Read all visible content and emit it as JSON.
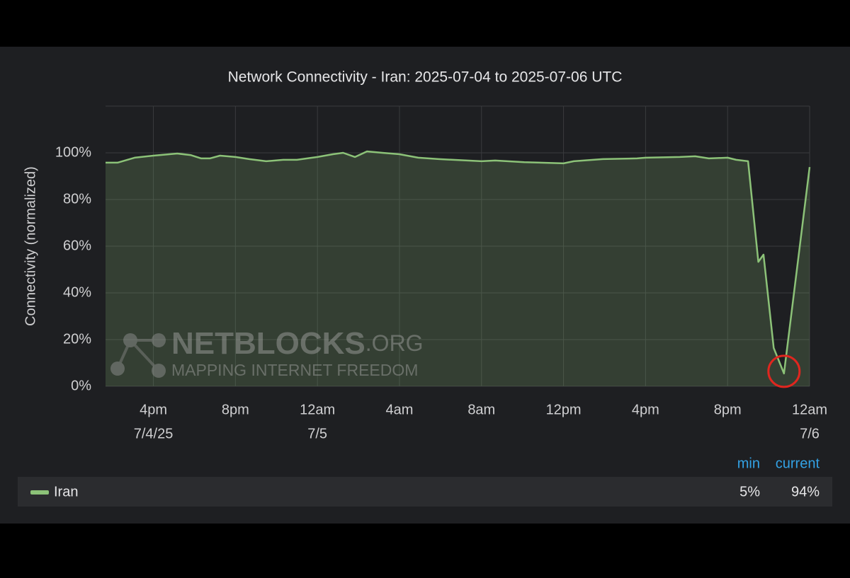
{
  "chart_data": {
    "type": "line",
    "title": "Network Connectivity - Iran: 2025-07-04 to 2025-07-06 UTC",
    "y_label": "Connectivity (normalized)",
    "watermark": {
      "brand": "NETBLOCKS",
      "domain": ".ORG",
      "tagline": "MAPPING INTERNET FREEDOM"
    },
    "x": [
      "2025-07-04 13:40",
      "2025-07-04 14:15",
      "2025-07-04 15:05",
      "2025-07-04 16:00",
      "2025-07-04 17:10",
      "2025-07-04 17:50",
      "2025-07-04 18:20",
      "2025-07-04 18:45",
      "2025-07-04 19:15",
      "2025-07-04 20:00",
      "2025-07-04 20:40",
      "2025-07-04 21:30",
      "2025-07-04 22:20",
      "2025-07-04 23:00",
      "2025-07-05 00:00",
      "2025-07-05 00:45",
      "2025-07-05 01:15",
      "2025-07-05 01:50",
      "2025-07-05 02:25",
      "2025-07-05 03:10",
      "2025-07-05 04:00",
      "2025-07-05 04:55",
      "2025-07-05 05:55",
      "2025-07-05 08:00",
      "2025-07-05 08:40",
      "2025-07-05 10:05",
      "2025-07-05 12:00",
      "2025-07-05 12:30",
      "2025-07-05 13:55",
      "2025-07-05 15:35",
      "2025-07-05 16:00",
      "2025-07-05 17:40",
      "2025-07-05 18:25",
      "2025-07-05 19:05",
      "2025-07-05 20:00",
      "2025-07-05 20:25",
      "2025-07-05 21:00",
      "2025-07-05 21:30",
      "2025-07-05 21:45",
      "2025-07-05 22:15",
      "2025-07-05 22:45",
      "2025-07-06 00:00"
    ],
    "series": [
      {
        "name": "Iran",
        "color": "#8cc278",
        "values": [
          95.8,
          95.8,
          97.9,
          98.8,
          99.7,
          99.0,
          97.6,
          97.6,
          98.8,
          98.2,
          97.3,
          96.4,
          97.0,
          97.0,
          98.2,
          99.4,
          100,
          98.2,
          100.6,
          100,
          99.4,
          97.9,
          97.3,
          96.4,
          96.7,
          96.0,
          95.5,
          96.4,
          97.3,
          97.6,
          97.9,
          98.2,
          98.5,
          97.6,
          97.9,
          97.0,
          96.4,
          53.3,
          56.4,
          16.4,
          5.5,
          93.9
        ],
        "legend_values": [
          "5%",
          "94%"
        ]
      }
    ],
    "legend_columns": [
      "min",
      "current"
    ],
    "xlim": [
      "2025-07-04 13:40",
      "2025-07-06 00:00"
    ],
    "xticks": [
      {
        "value": "2025-07-04 16:00",
        "label": "4pm"
      },
      {
        "value": "2025-07-04 20:00",
        "label": "8pm"
      },
      {
        "value": "2025-07-05 00:00",
        "label": "12am"
      },
      {
        "value": "2025-07-05 04:00",
        "label": "4am"
      },
      {
        "value": "2025-07-05 08:00",
        "label": "8am"
      },
      {
        "value": "2025-07-05 12:00",
        "label": "12pm"
      },
      {
        "value": "2025-07-05 16:00",
        "label": "4pm"
      },
      {
        "value": "2025-07-05 20:00",
        "label": "8pm"
      },
      {
        "value": "2025-07-06 00:00",
        "label": "12am"
      }
    ],
    "xticks_dates": [
      {
        "value": "2025-07-04 16:00",
        "label": "7/4/25"
      },
      {
        "value": "2025-07-05 00:00",
        "label": "7/5"
      },
      {
        "value": "2025-07-06 00:00",
        "label": "7/6"
      }
    ],
    "ylim": [
      0,
      120
    ],
    "yticks": [
      {
        "value": 0,
        "label": "0%"
      },
      {
        "value": 20,
        "label": "20%"
      },
      {
        "value": 40,
        "label": "40%"
      },
      {
        "value": 60,
        "label": "60%"
      },
      {
        "value": 80,
        "label": "80%"
      },
      {
        "value": 100,
        "label": "100%"
      }
    ],
    "grid": true
  }
}
